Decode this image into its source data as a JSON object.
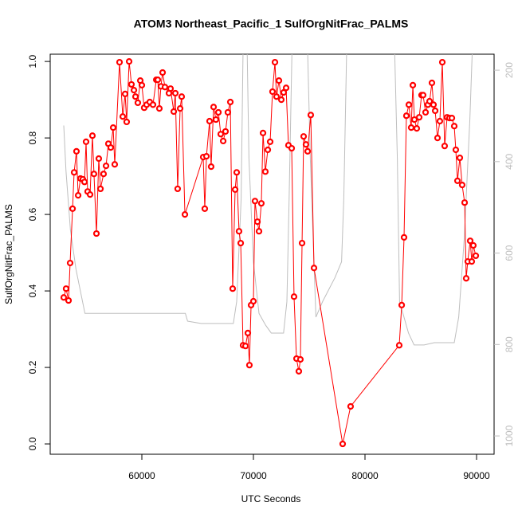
{
  "chart_data": {
    "type": "line",
    "title": "ATOM3 Northeast_Pacific_1 SulfOrgNitFrac_PALMS",
    "x_label": "UTC Seconds",
    "y_label": "SulfOrgNitFrac_PALMS",
    "xlim": [
      51786,
      91571
    ],
    "ylim": [
      -0.027,
      1.019
    ],
    "y2lim": [
      1040,
      165
    ],
    "xticks": [
      60000,
      70000,
      80000,
      90000
    ],
    "yticks": [
      {
        "value": 0,
        "label": "0.0"
      },
      0.2,
      0.4,
      0.6,
      0.8,
      {
        "value": 1,
        "label": "1.0"
      }
    ],
    "y2ticks": [
      200,
      400,
      600,
      800,
      1000
    ],
    "series": [
      {
        "color": "#ff0000",
        "markers": true,
        "x": [
          53000,
          53210,
          53430,
          53570,
          53790,
          53930,
          54140,
          54290,
          54500,
          54710,
          54860,
          55000,
          55140,
          55360,
          55570,
          55710,
          55930,
          56140,
          56290,
          56570,
          56790,
          57000,
          57210,
          57430,
          57570,
          58000,
          58290,
          58500,
          58640,
          58860,
          59070,
          59290,
          59430,
          59640,
          59860,
          60000,
          60210,
          60430,
          60710,
          61000,
          61290,
          61430,
          61570,
          61710,
          61860,
          62070,
          62430,
          62570,
          62860,
          63000,
          63210,
          63430,
          63570,
          63860,
          65500,
          65640,
          65790,
          66070,
          66210,
          66430,
          66640,
          66860,
          67070,
          67290,
          67500,
          67710,
          67930,
          68140,
          68360,
          68500,
          68710,
          68860,
          69070,
          69290,
          69500,
          69640,
          69790,
          70000,
          70140,
          70360,
          70500,
          70710,
          70860,
          71070,
          71290,
          71500,
          71710,
          71930,
          72070,
          72290,
          72500,
          72710,
          72930,
          73140,
          73430,
          73640,
          73860,
          74070,
          74210,
          74360,
          74500,
          74710,
          74860,
          75140,
          75430,
          78000,
          78710,
          83070,
          83290,
          83500,
          83710,
          83930,
          84140,
          84290,
          84430,
          84640,
          84860,
          85070,
          85210,
          85430,
          85640,
          85790,
          86000,
          86140,
          86290,
          86500,
          86710,
          86930,
          87140,
          87360,
          87570,
          87790,
          88000,
          88140,
          88290,
          88500,
          88710,
          88930,
          89070,
          89210,
          89430,
          89570,
          89710,
          89930
        ],
        "values": [
          0.383,
          0.406,
          0.375,
          0.473,
          0.615,
          0.71,
          0.765,
          0.65,
          0.694,
          0.692,
          0.685,
          0.79,
          0.66,
          0.652,
          0.806,
          0.706,
          0.55,
          0.746,
          0.667,
          0.706,
          0.727,
          0.785,
          0.775,
          0.827,
          0.731,
          0.998,
          0.856,
          0.915,
          0.842,
          1.0,
          0.94,
          0.925,
          0.908,
          0.892,
          0.95,
          0.938,
          0.879,
          0.887,
          0.894,
          0.887,
          0.952,
          0.952,
          0.877,
          0.935,
          0.971,
          0.933,
          0.917,
          0.929,
          0.869,
          0.917,
          0.667,
          0.877,
          0.908,
          0.6,
          0.75,
          0.615,
          0.752,
          0.844,
          0.725,
          0.881,
          0.848,
          0.867,
          0.81,
          0.792,
          0.817,
          0.867,
          0.894,
          0.406,
          0.665,
          0.71,
          0.556,
          0.525,
          0.258,
          0.256,
          0.29,
          0.206,
          0.363,
          0.373,
          0.635,
          0.581,
          0.556,
          0.629,
          0.813,
          0.712,
          0.769,
          0.79,
          0.921,
          0.998,
          0.908,
          0.95,
          0.9,
          0.919,
          0.931,
          0.781,
          0.773,
          0.385,
          0.223,
          0.19,
          0.221,
          0.525,
          0.804,
          0.783,
          0.765,
          0.86,
          0.46,
          0.0,
          0.098,
          0.258,
          0.363,
          0.54,
          0.858,
          0.887,
          0.827,
          0.938,
          0.848,
          0.825,
          0.854,
          0.912,
          0.912,
          0.867,
          0.887,
          0.896,
          0.944,
          0.887,
          0.871,
          0.8,
          0.844,
          0.998,
          0.779,
          0.854,
          0.852,
          0.852,
          0.831,
          0.769,
          0.688,
          0.748,
          0.677,
          0.631,
          0.433,
          0.477,
          0.531,
          0.477,
          0.519,
          0.492
        ]
      },
      {
        "color": "#bebebe",
        "axis": "y2",
        "markers": false,
        "x": [
          53000,
          53200,
          53600,
          54100,
          54900,
          63900,
          64100,
          65300,
          68200,
          68500,
          68900,
          69100,
          69400,
          69600,
          70000,
          70500,
          71100,
          71600,
          72700,
          73000,
          73200,
          73500,
          74800,
          75100,
          75600,
          76200,
          77300,
          77900,
          78100,
          78400,
          82600,
          82900,
          83100,
          83900,
          84400,
          85300,
          86200,
          88000,
          88400,
          88900,
          89400,
          89700
        ],
        "values": [
          321,
          420,
          550,
          636,
          732,
          732,
          749,
          754,
          754,
          706,
          481,
          100,
          100,
          394,
          619,
          732,
          758,
          775,
          775,
          706,
          481,
          100,
          100,
          394,
          740,
          706,
          654,
          619,
          481,
          100,
          100,
          394,
          706,
          775,
          801,
          801,
          796,
          796,
          740,
          567,
          307,
          100
        ]
      }
    ]
  }
}
